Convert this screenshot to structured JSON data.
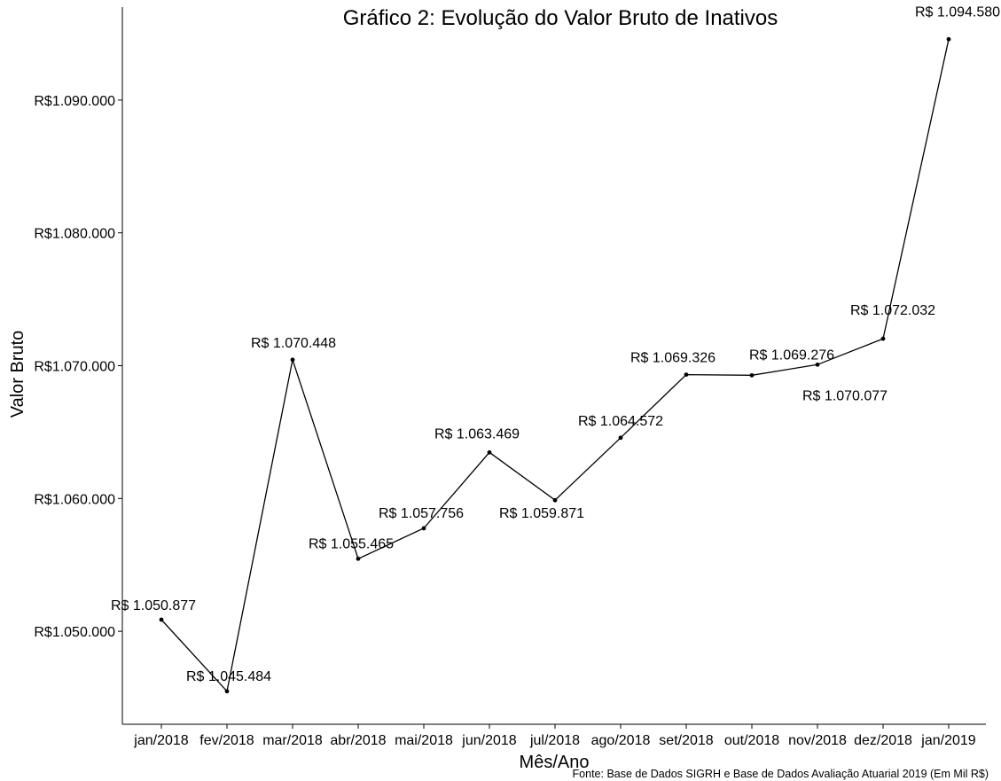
{
  "chart_data": {
    "type": "line",
    "title": "Gráfico 2: Evolução do Valor Bruto de Inativos",
    "xlabel": "Mês/Ano",
    "ylabel": "Valor Bruto",
    "caption": "Fonte: Base de Dados SIGRH e Base de Dados Avaliação Atuarial 2019 (Em Mil R$)",
    "categories": [
      "jan/2018",
      "fev/2018",
      "mar/2018",
      "abr/2018",
      "mai/2018",
      "jun/2018",
      "jul/2018",
      "ago/2018",
      "set/2018",
      "out/2018",
      "nov/2018",
      "dez/2018",
      "jan/2019"
    ],
    "values": [
      1050877,
      1045484,
      1070448,
      1055465,
      1057756,
      1063469,
      1059871,
      1064572,
      1069326,
      1069276,
      1070077,
      1072032,
      1094580
    ],
    "data_labels": [
      "R$ 1.050.877",
      "R$ 1.045.484",
      "R$ 1.070.448",
      "R$ 1.055.465",
      "R$ 1.057.756",
      "R$ 1.063.469",
      "R$ 1.059.871",
      "R$ 1.064.572",
      "R$ 1.069.326",
      "R$ 1.069.276",
      "R$ 1.070.077",
      "R$ 1.072.032",
      "R$ 1.094.580"
    ],
    "yticks": [
      1050000,
      1060000,
      1070000,
      1080000,
      1090000
    ],
    "ytick_labels": [
      "R$1.050.000",
      "R$1.060.000",
      "R$1.070.000",
      "R$1.080.000",
      "R$1.090.000"
    ],
    "ylim": [
      1043000,
      1097000
    ],
    "grid": false,
    "line_color": "#000000"
  }
}
